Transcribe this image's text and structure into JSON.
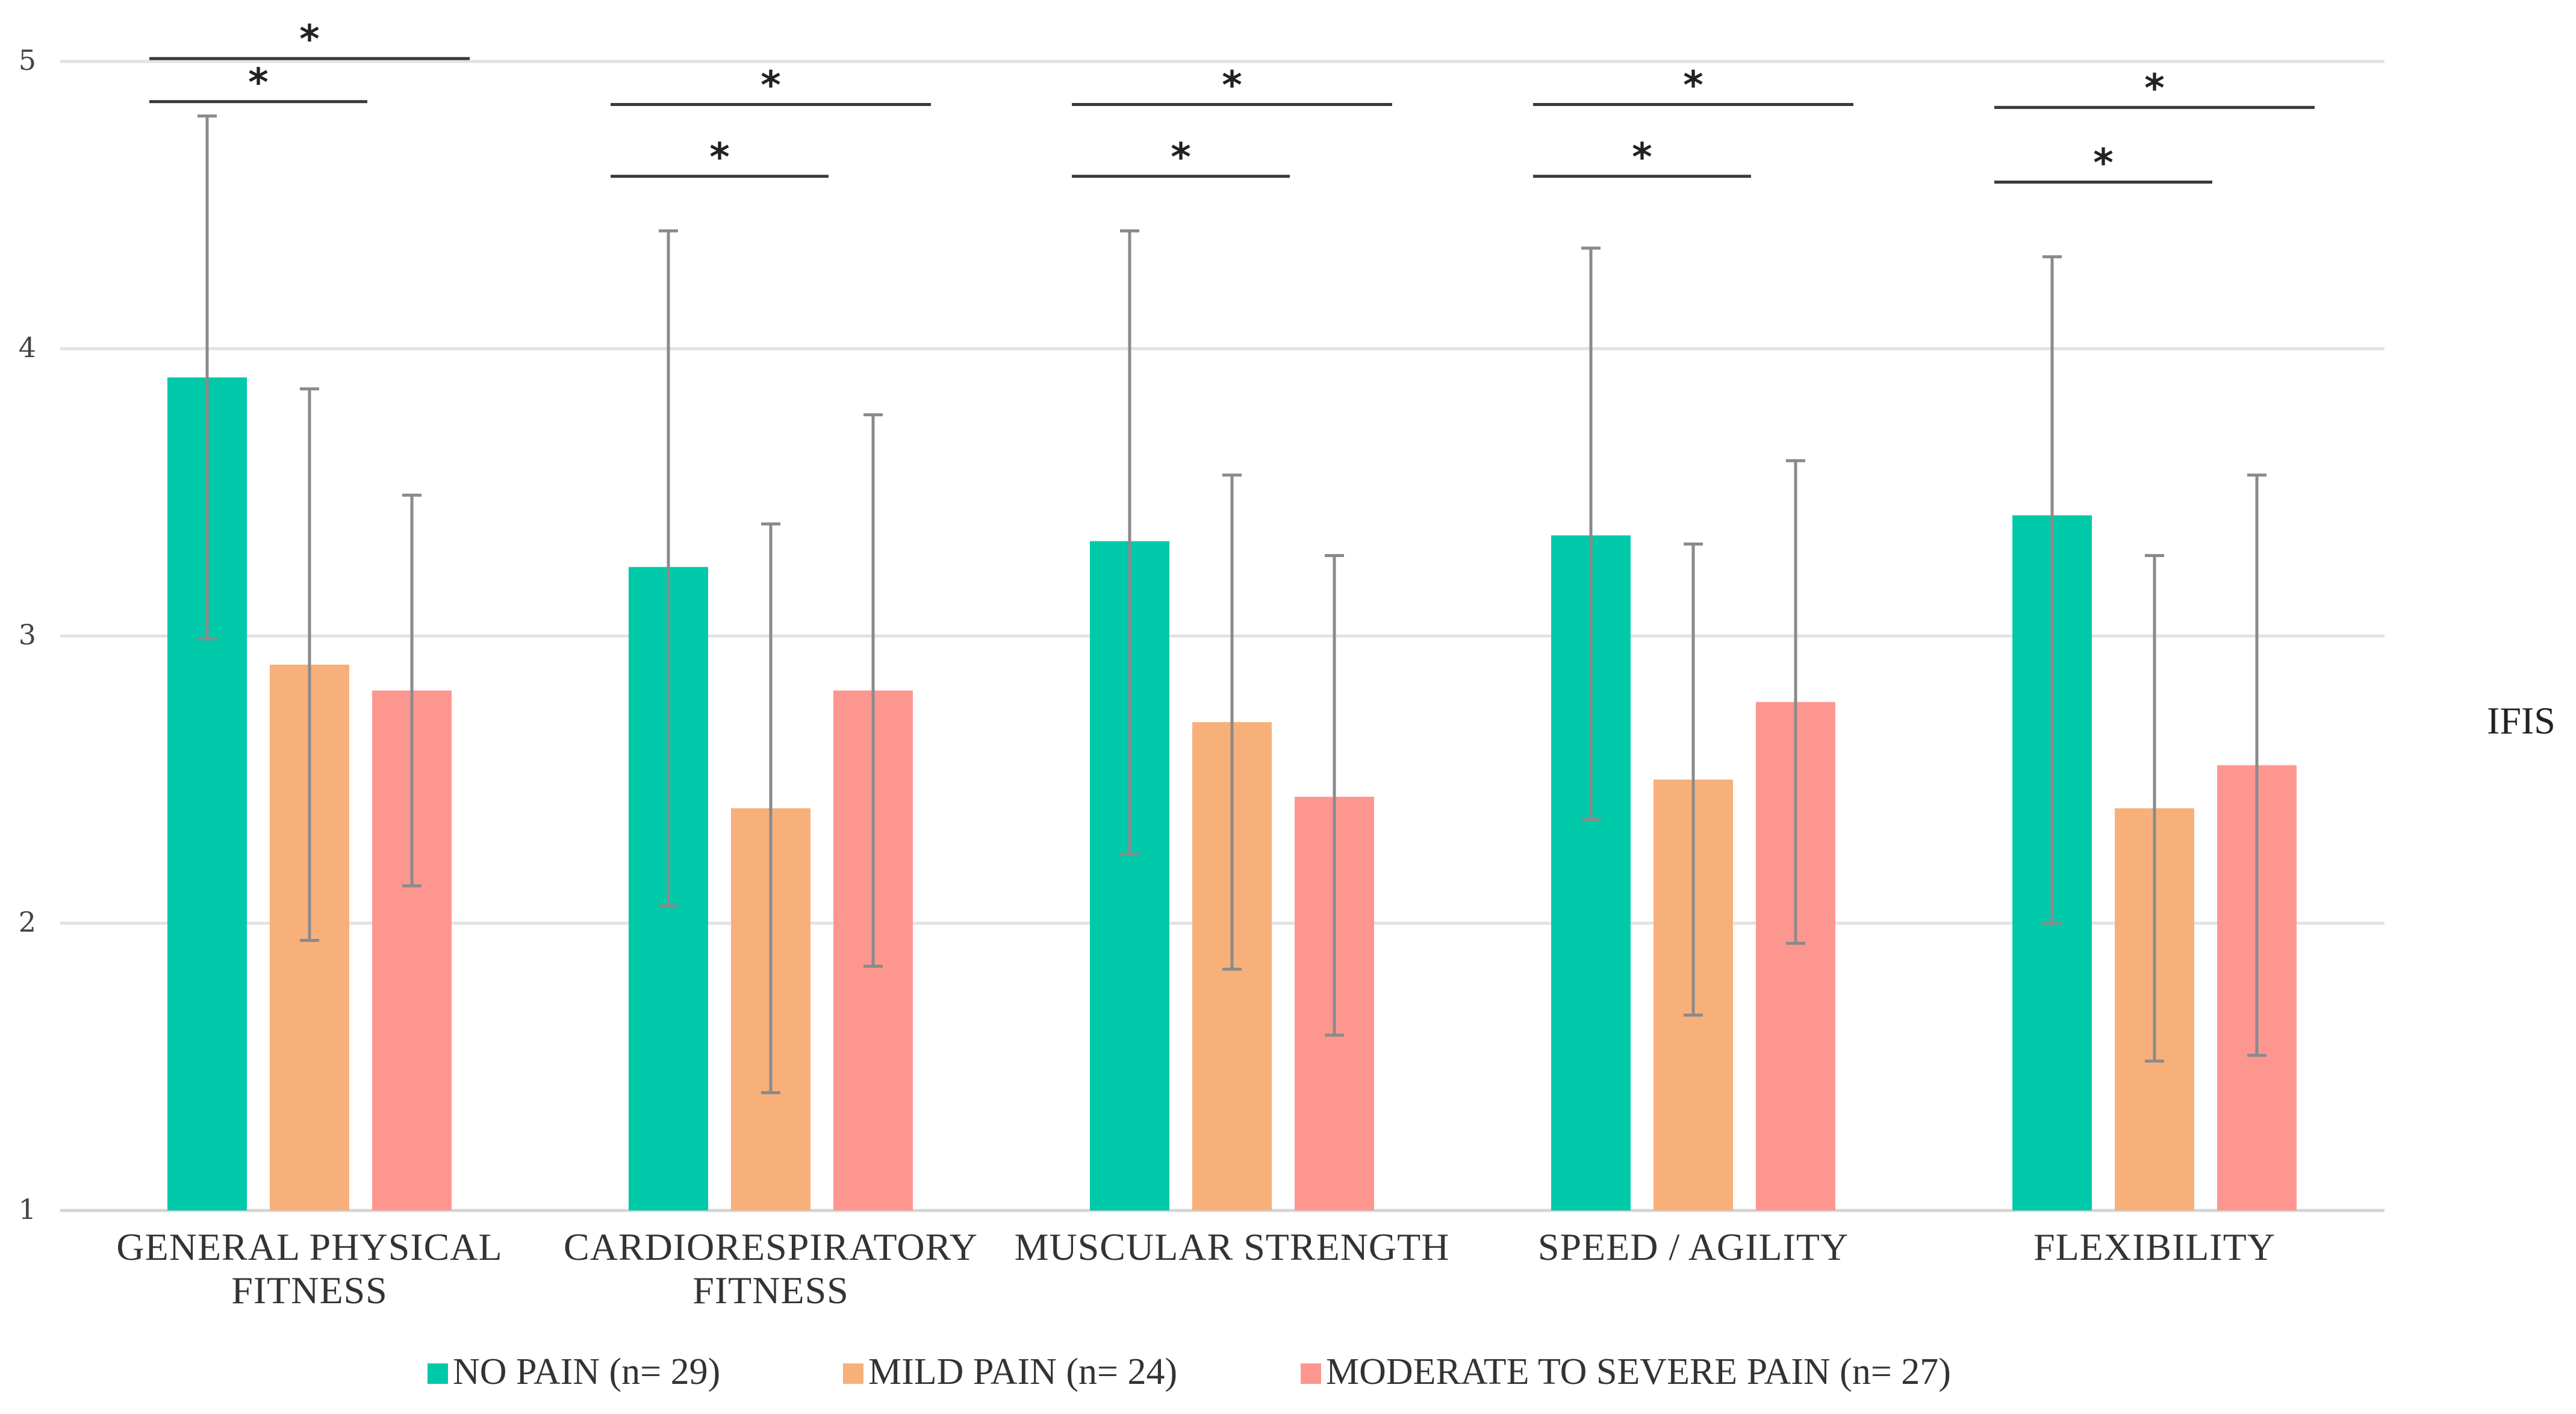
{
  "chart_data": {
    "type": "bar",
    "title": "",
    "xlabel": "",
    "ylabel": "IFIS",
    "ylim": [
      1,
      5
    ],
    "yticks": [
      1,
      2,
      3,
      4,
      5
    ],
    "grid": true,
    "legend_position": "bottom",
    "categories": [
      [
        "GENERAL PHYSICAL",
        "FITNESS"
      ],
      [
        "CARDIORESPIRATORY",
        "FITNESS"
      ],
      [
        "MUSCULAR STRENGTH"
      ],
      [
        "SPEED  /  AGILITY"
      ],
      [
        "FLEXIBILITY"
      ]
    ],
    "series": [
      {
        "name": "NO PAIN (n= 29)",
        "color": "#00c9aa",
        "values": [
          3.9,
          3.24,
          3.33,
          3.35,
          3.42
        ],
        "error_low": [
          2.99,
          2.06,
          2.24,
          2.36,
          2.0
        ],
        "error_high": [
          4.81,
          4.41,
          4.41,
          4.35,
          4.32
        ]
      },
      {
        "name": "MILD PAIN (n= 24)",
        "color": "#f8b07a",
        "values": [
          2.9,
          2.4,
          2.7,
          2.5,
          2.4
        ],
        "error_low": [
          1.94,
          1.41,
          1.84,
          1.68,
          1.52
        ],
        "error_high": [
          3.86,
          3.39,
          3.56,
          3.32,
          3.28
        ]
      },
      {
        "name": "MODERATE TO SEVERE PAIN (n= 27)",
        "color": "#fe9690",
        "values": [
          2.81,
          2.81,
          2.44,
          2.77,
          2.55
        ],
        "error_low": [
          2.13,
          1.85,
          1.61,
          1.93,
          1.54
        ],
        "error_high": [
          3.49,
          3.77,
          3.28,
          3.61,
          3.56
        ]
      }
    ],
    "significance": [
      {
        "category": 0,
        "from_series": 0,
        "to_series": 1,
        "y": 4.86,
        "label": "*"
      },
      {
        "category": 0,
        "from_series": 0,
        "to_series": 2,
        "y": 5.01,
        "label": "*"
      },
      {
        "category": 1,
        "from_series": 0,
        "to_series": 1,
        "y": 4.6,
        "label": "*"
      },
      {
        "category": 1,
        "from_series": 0,
        "to_series": 2,
        "y": 4.85,
        "label": "*"
      },
      {
        "category": 2,
        "from_series": 0,
        "to_series": 1,
        "y": 4.6,
        "label": "*"
      },
      {
        "category": 2,
        "from_series": 0,
        "to_series": 2,
        "y": 4.85,
        "label": "*"
      },
      {
        "category": 3,
        "from_series": 0,
        "to_series": 1,
        "y": 4.6,
        "label": "*"
      },
      {
        "category": 3,
        "from_series": 0,
        "to_series": 2,
        "y": 4.85,
        "label": "*"
      },
      {
        "category": 4,
        "from_series": 0,
        "to_series": 1,
        "y": 4.58,
        "label": "*"
      },
      {
        "category": 4,
        "from_series": 0,
        "to_series": 2,
        "y": 4.84,
        "label": "*"
      }
    ]
  }
}
